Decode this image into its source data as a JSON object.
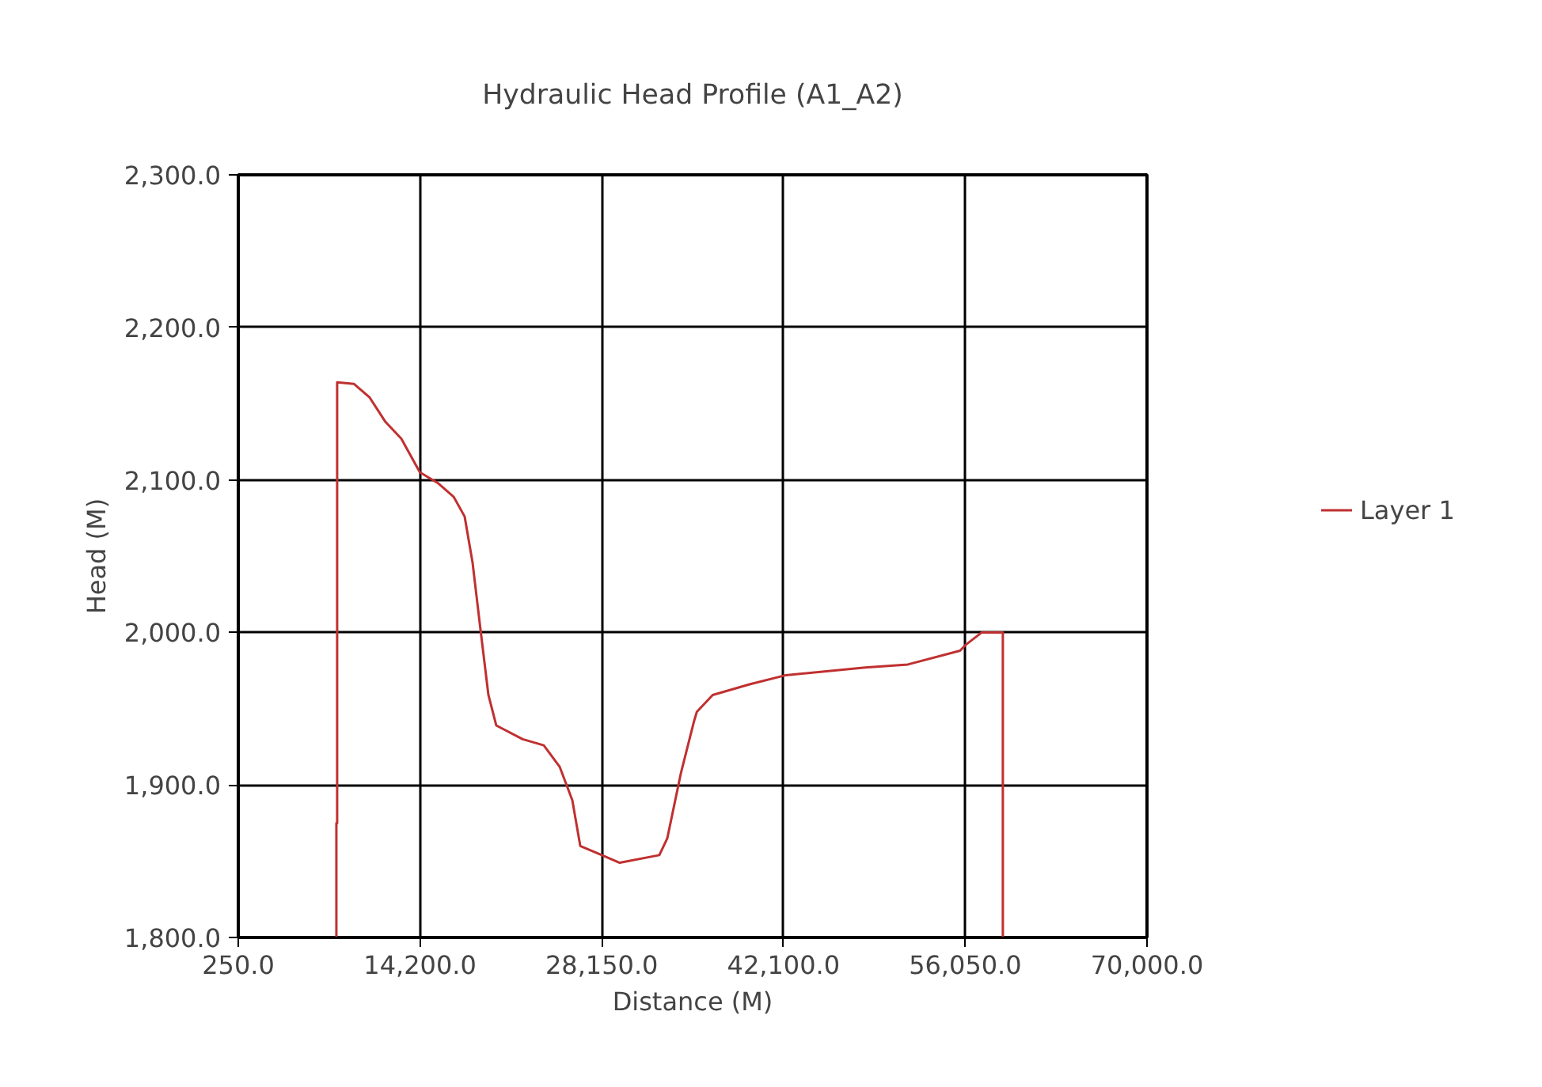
{
  "chart_data": {
    "type": "line",
    "title": "Hydraulic Head Profile (A1_A2)",
    "xlabel": "Distance (M)",
    "ylabel": "Head (M)",
    "xlim": [
      250,
      70000
    ],
    "ylim": [
      1800,
      2300
    ],
    "xticks": [
      {
        "value": 250,
        "label": "250.0"
      },
      {
        "value": 14200,
        "label": "14,200.0"
      },
      {
        "value": 28150,
        "label": "28,150.0"
      },
      {
        "value": 42100,
        "label": "42,100.0"
      },
      {
        "value": 56050,
        "label": "56,050.0"
      },
      {
        "value": 70000,
        "label": "70,000.0"
      }
    ],
    "yticks": [
      {
        "value": 1800,
        "label": "1,800.0"
      },
      {
        "value": 1900,
        "label": "1,900.0"
      },
      {
        "value": 2000,
        "label": "2,000.0"
      },
      {
        "value": 2100,
        "label": "2,100.0"
      },
      {
        "value": 2200,
        "label": "2,200.0"
      },
      {
        "value": 2300,
        "label": "2,300.0"
      }
    ],
    "grid": true,
    "legend": "right",
    "marker": "none",
    "line_style": "solid",
    "series": [
      {
        "name": "Layer 1",
        "color": "#c03030",
        "x": [
          7780,
          7780,
          7840,
          7840,
          9120,
          10335,
          11550,
          12765,
          14190,
          15560,
          16775,
          17625,
          18230,
          18840,
          19450,
          20055,
          22080,
          23700,
          24915,
          25890,
          26500,
          28160,
          29530,
          32570,
          33180,
          34230,
          35240,
          35450,
          36665,
          39495,
          42290,
          48370,
          51650,
          55650,
          56100,
          57320,
          58935,
          58935
        ],
        "values": [
          1800,
          1875,
          1875,
          2164,
          2163,
          2154,
          2138,
          2127,
          2105,
          2098,
          2089,
          2076,
          2046,
          2002,
          1959,
          1939,
          1930,
          1926,
          1912,
          1890,
          1860,
          1854,
          1849,
          1854,
          1865,
          1908,
          1942,
          1948,
          1959,
          1966,
          1972,
          1977,
          1979,
          1988,
          1992,
          2000,
          2000,
          1800
        ]
      }
    ]
  }
}
